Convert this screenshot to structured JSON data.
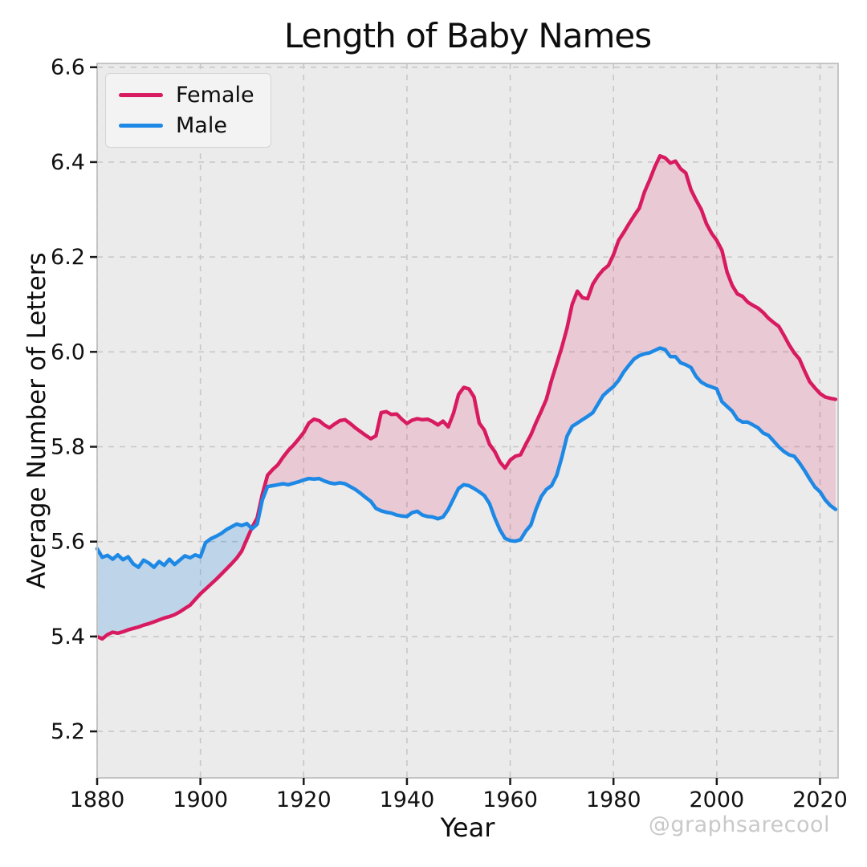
{
  "watermark": {
    "text": "@graphsarecool"
  },
  "colors": {
    "female": "#d81b60",
    "male": "#1e88e5",
    "female_fill": "rgba(216,27,96,0.16)",
    "male_fill": "rgba(30,136,229,0.22)",
    "plot_background": "#ebebeb",
    "grid": "#c7c7c7",
    "spine": "#c0c0c0",
    "tick": "#1a1a1a",
    "tick_label": "#111111",
    "watermark": "#c9c9c9"
  },
  "chart_data": {
    "type": "line",
    "title": "Length of Baby Names",
    "xlabel": "Year",
    "ylabel": "Average Number of Letters",
    "x_start": 1880,
    "x_step": 1,
    "x_end": 2023,
    "xlim": [
      1880,
      2023.5
    ],
    "ylim": [
      5.102,
      6.608
    ],
    "x_ticks": [
      1880,
      1900,
      1920,
      1940,
      1960,
      1980,
      2000,
      2020
    ],
    "x_tick_labels": [
      "1880",
      "1900",
      "1920",
      "1940",
      "1960",
      "1980",
      "2000",
      "2020"
    ],
    "y_ticks": [
      5.2,
      5.4,
      5.6,
      5.8,
      6.0,
      6.2,
      6.4,
      6.6
    ],
    "y_tick_labels": [
      "5.2",
      "5.4",
      "5.6",
      "5.8",
      "6.0",
      "6.2",
      "6.4",
      "6.6"
    ],
    "grid": "dashed-both-axes",
    "legend_position": "upper-left",
    "fill_between": "shaded area between series; pink where Female > Male, blue where Male > Female",
    "series": [
      {
        "name": "Female",
        "color": "#d81b60",
        "values": [
          5.4,
          5.395,
          5.404,
          5.409,
          5.407,
          5.41,
          5.414,
          5.417,
          5.42,
          5.424,
          5.427,
          5.431,
          5.435,
          5.439,
          5.442,
          5.446,
          5.452,
          5.459,
          5.466,
          5.478,
          5.49,
          5.5,
          5.51,
          5.52,
          5.531,
          5.542,
          5.553,
          5.565,
          5.58,
          5.605,
          5.63,
          5.65,
          5.7,
          5.74,
          5.752,
          5.762,
          5.778,
          5.792,
          5.803,
          5.816,
          5.83,
          5.85,
          5.858,
          5.855,
          5.846,
          5.84,
          5.848,
          5.855,
          5.857,
          5.849,
          5.84,
          5.832,
          5.824,
          5.817,
          5.823,
          5.872,
          5.874,
          5.868,
          5.869,
          5.858,
          5.849,
          5.856,
          5.859,
          5.857,
          5.858,
          5.853,
          5.846,
          5.854,
          5.842,
          5.87,
          5.91,
          5.925,
          5.922,
          5.905,
          5.85,
          5.835,
          5.805,
          5.79,
          5.768,
          5.755,
          5.772,
          5.78,
          5.783,
          5.805,
          5.825,
          5.851,
          5.875,
          5.9,
          5.94,
          5.975,
          6.01,
          6.05,
          6.1,
          6.128,
          6.114,
          6.112,
          6.143,
          6.16,
          6.173,
          6.182,
          6.205,
          6.235,
          6.252,
          6.27,
          6.287,
          6.303,
          6.337,
          6.362,
          6.39,
          6.413,
          6.409,
          6.398,
          6.402,
          6.386,
          6.377,
          6.342,
          6.32,
          6.3,
          6.27,
          6.25,
          6.235,
          6.214,
          6.168,
          6.14,
          6.122,
          6.117,
          6.105,
          6.098,
          6.092,
          6.083,
          6.071,
          6.062,
          6.054,
          6.035,
          6.015,
          5.998,
          5.985,
          5.96,
          5.937,
          5.924,
          5.912,
          5.905,
          5.902,
          5.9
        ]
      },
      {
        "name": "Male",
        "color": "#1e88e5",
        "values": [
          5.585,
          5.567,
          5.571,
          5.563,
          5.572,
          5.562,
          5.568,
          5.553,
          5.546,
          5.561,
          5.555,
          5.546,
          5.558,
          5.55,
          5.563,
          5.552,
          5.561,
          5.57,
          5.566,
          5.572,
          5.568,
          5.598,
          5.606,
          5.611,
          5.617,
          5.625,
          5.631,
          5.637,
          5.634,
          5.638,
          5.627,
          5.637,
          5.688,
          5.716,
          5.718,
          5.72,
          5.722,
          5.72,
          5.723,
          5.726,
          5.73,
          5.733,
          5.732,
          5.733,
          5.728,
          5.724,
          5.722,
          5.724,
          5.722,
          5.716,
          5.71,
          5.702,
          5.693,
          5.685,
          5.67,
          5.665,
          5.662,
          5.66,
          5.656,
          5.654,
          5.653,
          5.661,
          5.664,
          5.656,
          5.653,
          5.652,
          5.648,
          5.652,
          5.668,
          5.69,
          5.712,
          5.72,
          5.718,
          5.712,
          5.705,
          5.697,
          5.68,
          5.65,
          5.625,
          5.607,
          5.602,
          5.601,
          5.604,
          5.622,
          5.635,
          5.668,
          5.695,
          5.71,
          5.718,
          5.74,
          5.778,
          5.822,
          5.843,
          5.85,
          5.857,
          5.864,
          5.872,
          5.89,
          5.908,
          5.918,
          5.927,
          5.94,
          5.958,
          5.972,
          5.985,
          5.992,
          5.996,
          5.998,
          6.003,
          6.008,
          6.005,
          5.99,
          5.99,
          5.977,
          5.973,
          5.967,
          5.948,
          5.936,
          5.93,
          5.926,
          5.922,
          5.895,
          5.885,
          5.875,
          5.858,
          5.852,
          5.852,
          5.846,
          5.84,
          5.829,
          5.824,
          5.812,
          5.8,
          5.79,
          5.783,
          5.78,
          5.766,
          5.75,
          5.732,
          5.715,
          5.705,
          5.688,
          5.676,
          5.668
        ]
      }
    ]
  }
}
